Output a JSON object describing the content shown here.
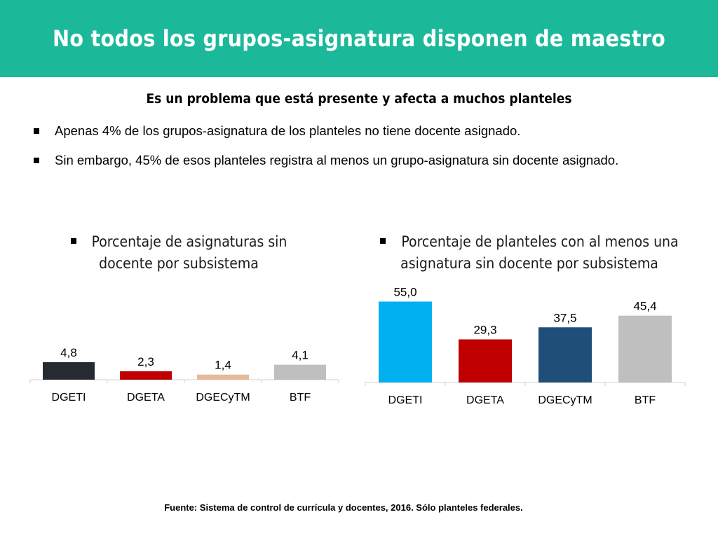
{
  "header": {
    "title": "No todos los grupos-asignatura disponen de maestro"
  },
  "subtitle": "Es un problema que está presente y afecta a muchos planteles",
  "bullets": [
    "Apenas 4% de los grupos-asignatura de los planteles no tiene docente asignado.",
    "Sin embargo, 45% de esos planteles registra al menos un grupo-asignatura sin docente asignado."
  ],
  "colors": {
    "title_bar": "#1bb99a",
    "DGETI": "#00b0f0",
    "DGETA": "#c00000",
    "DGECyTM": "#1f4e79",
    "BTF": "#bfbfbf"
  },
  "chart_data": [
    {
      "type": "bar",
      "title": "Porcentaje de asignaturas sin docente por subsistema",
      "categories": [
        "DGETI",
        "DGETA",
        "DGECyTM",
        "BTF"
      ],
      "values": [
        4.8,
        2.3,
        1.4,
        4.1
      ],
      "value_labels": [
        "4,8",
        "2,3",
        "1,4",
        "4,1"
      ],
      "bar_colors": [
        "#262b33",
        "#c00000",
        "#e6b99a",
        "#bfbfbf"
      ],
      "xlabel": "",
      "ylabel": "",
      "ylim": [
        0,
        100
      ],
      "grid": false,
      "legend": "none"
    },
    {
      "type": "bar",
      "title": "Porcentaje de planteles con al menos una asignatura sin docente por subsistema",
      "categories": [
        "DGETI",
        "DGETA",
        "DGECyTM",
        "BTF"
      ],
      "values": [
        55.0,
        29.3,
        37.5,
        45.4
      ],
      "value_labels": [
        "55,0",
        "29,3",
        "37,5",
        "45,4"
      ],
      "bar_colors": [
        "#00b0f0",
        "#c00000",
        "#1f4e79",
        "#bfbfbf"
      ],
      "xlabel": "",
      "ylabel": "",
      "ylim": [
        0,
        60
      ],
      "grid": false,
      "legend": "none"
    }
  ],
  "source": "Fuente: Sistema de control de currícula y docentes, 2016. Sólo planteles federales."
}
